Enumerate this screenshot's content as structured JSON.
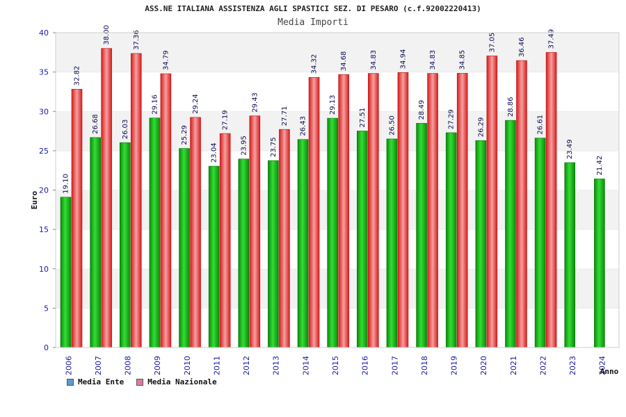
{
  "chart_data": {
    "type": "bar",
    "title": "ASS.NE ITALIANA ASSISTENZA AGLI SPASTICI SEZ. DI PESARO (c.f.92002220413)",
    "subtitle": "Media Importi",
    "xlabel": "Anno",
    "ylabel": "Euro",
    "ylim": [
      0,
      40
    ],
    "yticks": [
      "0",
      "5",
      "10",
      "15",
      "20",
      "25",
      "30",
      "35",
      "40"
    ],
    "categories": [
      "2006",
      "2007",
      "2008",
      "2009",
      "2010",
      "2011",
      "2012",
      "2013",
      "2014",
      "2015",
      "2016",
      "2017",
      "2018",
      "2019",
      "2020",
      "2021",
      "2022",
      "2023",
      "2024"
    ],
    "series": [
      {
        "name": "Media Ente",
        "values": [
          19.1,
          26.68,
          26.03,
          29.16,
          25.29,
          23.04,
          23.95,
          23.75,
          26.43,
          29.13,
          27.51,
          26.5,
          28.49,
          27.29,
          26.29,
          28.86,
          26.61,
          23.49,
          21.42
        ],
        "labels": [
          "19.10",
          "26.68",
          "26.03",
          "29.16",
          "25.29",
          "23.04",
          "23.95",
          "23.75",
          "26.43",
          "29.13",
          "27.51",
          "26.50",
          "28.49",
          "27.29",
          "26.29",
          "28.86",
          "26.61",
          "23.49",
          "21.42"
        ]
      },
      {
        "name": "Media Nazionale",
        "values": [
          32.82,
          38.0,
          37.36,
          34.79,
          29.24,
          27.19,
          29.43,
          27.71,
          34.32,
          34.68,
          34.83,
          34.94,
          34.83,
          34.85,
          37.05,
          36.46,
          37.49,
          null,
          null
        ],
        "labels": [
          "32.82",
          "38.00",
          "37.36",
          "34.79",
          "29.24",
          "27.19",
          "29.43",
          "27.71",
          "34.32",
          "34.68",
          "34.83",
          "34.94",
          "34.83",
          "34.85",
          "37.05",
          "36.46",
          "37.49",
          null,
          null
        ]
      }
    ],
    "legend": {
      "position": "bottom-left",
      "items": [
        {
          "label": "Media Ente",
          "color": "#5b9bd5"
        },
        {
          "label": "Media Nazionale",
          "color": "#e07aa6"
        }
      ]
    },
    "colors": {
      "ente_dark": "#0b8a0b",
      "ente_light": "#33dd33",
      "naz_dark": "#d81b1b",
      "naz_light": "#f4a0a0",
      "band": "#f2f2f2"
    }
  }
}
